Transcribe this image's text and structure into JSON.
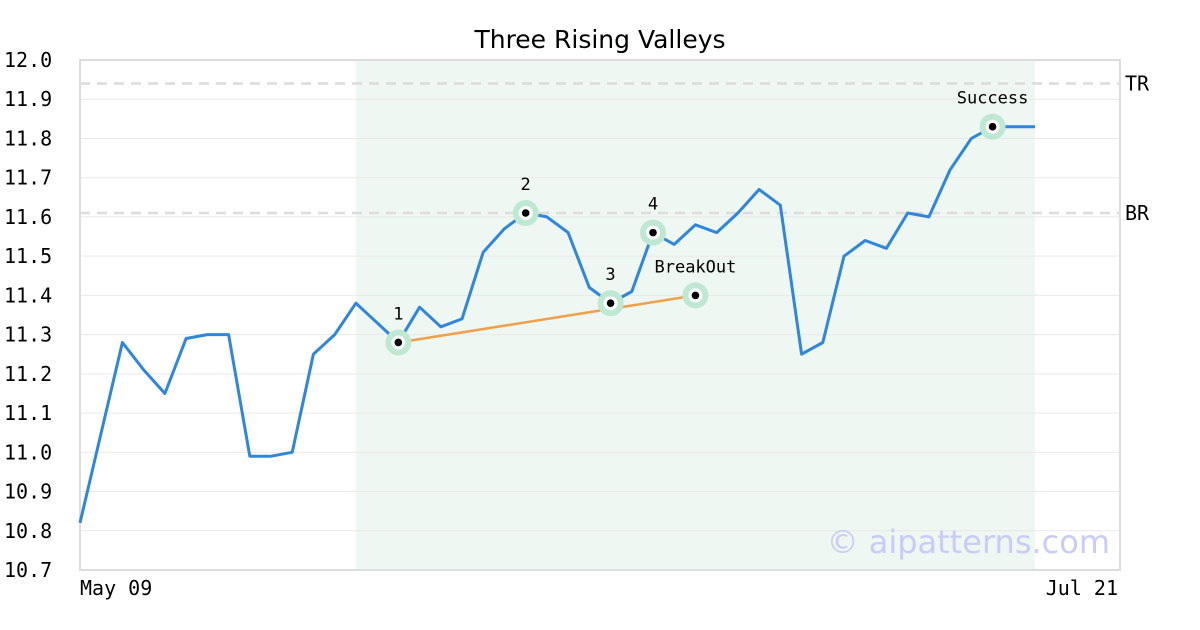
{
  "chart_data": {
    "type": "line",
    "title": "Three Rising Valleys",
    "xlabel": "",
    "ylabel": "",
    "x_tick_labels": [
      "May 09",
      "Jul 21"
    ],
    "ylim": [
      10.7,
      12.0
    ],
    "y_ticks": [
      "10.7",
      "10.8",
      "10.9",
      "11.0",
      "11.1",
      "11.2",
      "11.3",
      "11.4",
      "11.5",
      "11.6",
      "11.7",
      "11.8",
      "11.9",
      "12.0"
    ],
    "grid": true,
    "series": [
      {
        "color": "#2f86df",
        "values": [
          10.82,
          11.05,
          11.28,
          11.21,
          11.15,
          11.29,
          11.3,
          11.3,
          10.99,
          10.99,
          11.0,
          11.25,
          11.3,
          11.38,
          11.33,
          11.28,
          11.37,
          11.32,
          11.34,
          11.51,
          11.57,
          11.61,
          11.6,
          11.56,
          11.42,
          11.38,
          11.41,
          11.56,
          11.53,
          11.58,
          11.56,
          11.61,
          11.67,
          11.63,
          11.25,
          11.28,
          11.5,
          11.54,
          11.52,
          11.61,
          11.6,
          11.72,
          11.8,
          11.83,
          11.83,
          11.83
        ]
      }
    ],
    "pattern_region": {
      "start_index": 13,
      "end_index": 45,
      "color": "#eef7f2"
    },
    "reference_lines": [
      {
        "label": "TR",
        "value": 11.94
      },
      {
        "label": "BR",
        "value": 11.61
      }
    ],
    "trend_line": {
      "from_index": 15,
      "from_value": 11.28,
      "to_index": 29,
      "to_value": 11.4,
      "color": "#f0a04a"
    },
    "annotations": [
      {
        "label": "1",
        "index": 15,
        "value": 11.28,
        "placement": "above"
      },
      {
        "label": "2",
        "index": 21,
        "value": 11.61,
        "placement": "above"
      },
      {
        "label": "3",
        "index": 25,
        "value": 11.38,
        "placement": "above"
      },
      {
        "label": "4",
        "index": 27,
        "value": 11.56,
        "placement": "above"
      },
      {
        "label": "BreakOut",
        "index": 29,
        "value": 11.4,
        "placement": "above"
      },
      {
        "label": "Success",
        "index": 43,
        "value": 11.83,
        "placement": "above"
      }
    ]
  },
  "watermark": "© aipatterns.com"
}
